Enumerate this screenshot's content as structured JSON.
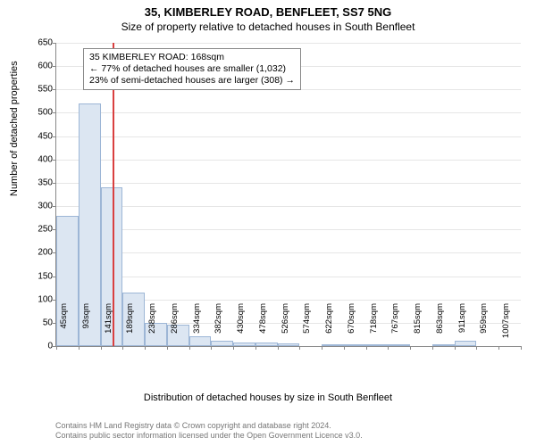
{
  "title_main": "35, KIMBERLEY ROAD, BENFLEET, SS7 5NG",
  "title_sub": "Size of property relative to detached houses in South Benfleet",
  "ylabel": "Number of detached properties",
  "xlabel": "Distribution of detached houses by size in South Benfleet",
  "chart": {
    "type": "histogram",
    "ylim": [
      0,
      650
    ],
    "ytick_step": 50,
    "yticks": [
      0,
      50,
      100,
      150,
      200,
      250,
      300,
      350,
      400,
      450,
      500,
      550,
      600,
      650
    ],
    "xticks": [
      "45sqm",
      "93sqm",
      "141sqm",
      "189sqm",
      "238sqm",
      "286sqm",
      "334sqm",
      "382sqm",
      "430sqm",
      "478sqm",
      "526sqm",
      "574sqm",
      "622sqm",
      "670sqm",
      "718sqm",
      "767sqm",
      "815sqm",
      "863sqm",
      "911sqm",
      "959sqm",
      "1007sqm"
    ],
    "bars": [
      280,
      520,
      340,
      115,
      50,
      45,
      22,
      12,
      7,
      8,
      5,
      0,
      4,
      2,
      2,
      2,
      0,
      2,
      12,
      0,
      0
    ],
    "bar_fill": "#dce6f2",
    "bar_border": "#9db6d6",
    "grid_color": "#e6e6e6",
    "axis_color": "#888888",
    "background": "#ffffff",
    "marker_line_color": "#d94040",
    "marker_value_sqm": 168,
    "x_min": 45,
    "x_bin_width": 48
  },
  "annotation": {
    "line1": "35 KIMBERLEY ROAD: 168sqm",
    "line2": "← 77% of detached houses are smaller (1,032)",
    "line3": "23% of semi-detached houses are larger (308) →"
  },
  "footer": {
    "line1": "Contains HM Land Registry data © Crown copyright and database right 2024.",
    "line2": "Contains public sector information licensed under the Open Government Licence v3.0."
  }
}
